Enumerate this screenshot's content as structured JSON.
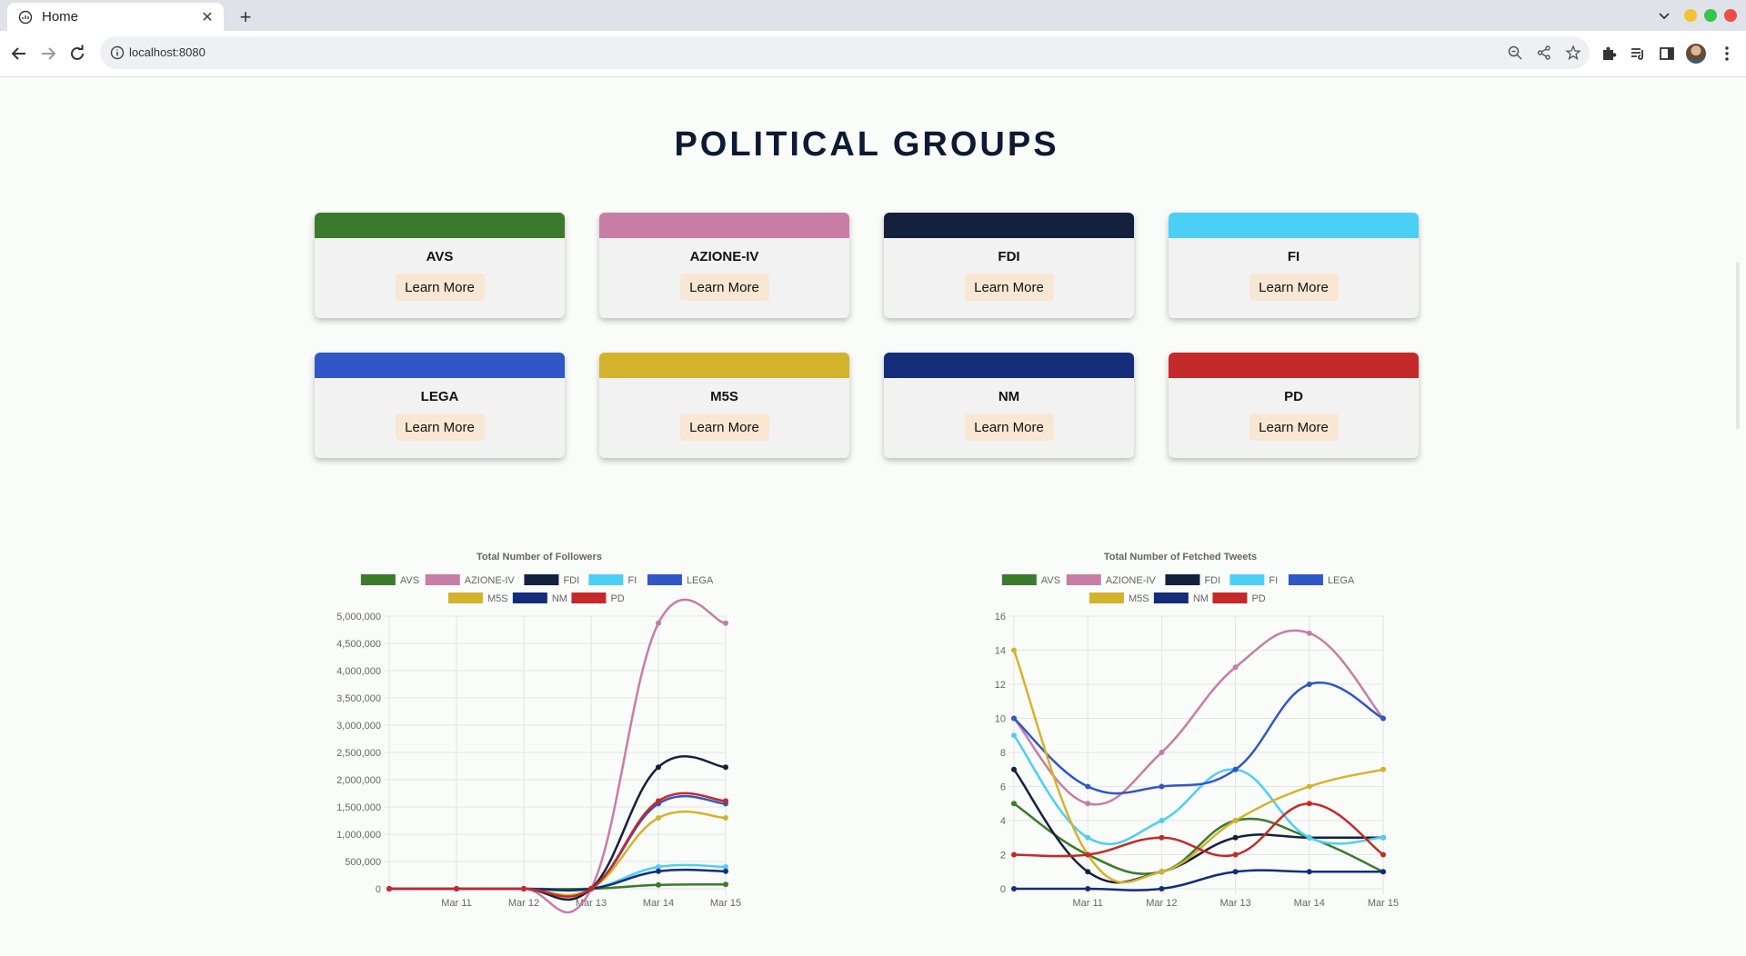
{
  "browser": {
    "tab_title": "Home",
    "url": "localhost:8080"
  },
  "page": {
    "title": "POLITICAL GROUPS"
  },
  "groups": [
    {
      "name": "AVS",
      "color": "#3b7a2c",
      "button": "Learn More"
    },
    {
      "name": "AZIONE-IV",
      "color": "#c77da6",
      "button": "Learn More"
    },
    {
      "name": "FDI",
      "color": "#14213d",
      "button": "Learn More"
    },
    {
      "name": "FI",
      "color": "#4ccff5",
      "button": "Learn More"
    },
    {
      "name": "LEGA",
      "color": "#3056c8",
      "button": "Learn More"
    },
    {
      "name": "M5S",
      "color": "#d4b32c",
      "button": "Learn More"
    },
    {
      "name": "NM",
      "color": "#132d7b",
      "button": "Learn More"
    },
    {
      "name": "PD",
      "color": "#c42a2a",
      "button": "Learn More"
    }
  ],
  "chart_data": [
    {
      "type": "line",
      "title": "Total Number of Followers",
      "categories": [
        "",
        "Mar 11",
        "Mar 12",
        "Mar 13",
        "Mar 14",
        "Mar 15"
      ],
      "y_ticks": [
        "0",
        "500,000",
        "1,000,000",
        "1,500,000",
        "2,000,000",
        "2,500,000",
        "3,000,000",
        "3,500,000",
        "4,000,000",
        "4,500,000",
        "5,000,000"
      ],
      "ylim": [
        0,
        5000000
      ],
      "legend_position": "top",
      "grid": true,
      "series": [
        {
          "name": "AVS",
          "color": "#3b7a2c",
          "values": [
            0,
            0,
            0,
            0,
            70000,
            80000
          ]
        },
        {
          "name": "AZIONE-IV",
          "color": "#c77da6",
          "values": [
            0,
            0,
            0,
            0,
            4870000,
            4870000
          ]
        },
        {
          "name": "FDI",
          "color": "#14213d",
          "values": [
            0,
            0,
            0,
            0,
            2230000,
            2230000
          ]
        },
        {
          "name": "FI",
          "color": "#4ccff5",
          "values": [
            0,
            0,
            0,
            0,
            400000,
            400000
          ]
        },
        {
          "name": "LEGA",
          "color": "#3056c8",
          "values": [
            0,
            0,
            0,
            0,
            1560000,
            1560000
          ]
        },
        {
          "name": "M5S",
          "color": "#d4b32c",
          "values": [
            0,
            0,
            0,
            0,
            1300000,
            1300000
          ]
        },
        {
          "name": "NM",
          "color": "#132d7b",
          "values": [
            0,
            0,
            0,
            0,
            320000,
            320000
          ]
        },
        {
          "name": "PD",
          "color": "#c42a2a",
          "values": [
            0,
            0,
            0,
            0,
            1610000,
            1610000
          ]
        }
      ]
    },
    {
      "type": "line",
      "title": "Total Number of Fetched Tweets",
      "categories": [
        "",
        "Mar 11",
        "Mar 12",
        "Mar 13",
        "Mar 14",
        "Mar 15"
      ],
      "y_ticks": [
        "0",
        "2",
        "4",
        "6",
        "8",
        "10",
        "12",
        "14",
        "16"
      ],
      "ylim": [
        0,
        16
      ],
      "legend_position": "top",
      "grid": true,
      "series": [
        {
          "name": "AVS",
          "color": "#3b7a2c",
          "values": [
            5,
            2,
            1,
            4,
            3,
            1
          ]
        },
        {
          "name": "AZIONE-IV",
          "color": "#c77da6",
          "values": [
            10,
            5,
            8,
            13,
            15,
            10
          ]
        },
        {
          "name": "FDI",
          "color": "#14213d",
          "values": [
            7,
            1,
            1,
            3,
            3,
            3
          ]
        },
        {
          "name": "FI",
          "color": "#4ccff5",
          "values": [
            9,
            3,
            4,
            7,
            3,
            3
          ]
        },
        {
          "name": "LEGA",
          "color": "#3056c8",
          "values": [
            10,
            6,
            6,
            7,
            12,
            10
          ]
        },
        {
          "name": "M5S",
          "color": "#d4b32c",
          "values": [
            14,
            2,
            1,
            4,
            6,
            7
          ]
        },
        {
          "name": "NM",
          "color": "#132d7b",
          "values": [
            0,
            0,
            0,
            1,
            1,
            1
          ]
        },
        {
          "name": "PD",
          "color": "#c42a2a",
          "values": [
            2,
            2,
            3,
            2,
            5,
            2
          ]
        }
      ]
    }
  ]
}
